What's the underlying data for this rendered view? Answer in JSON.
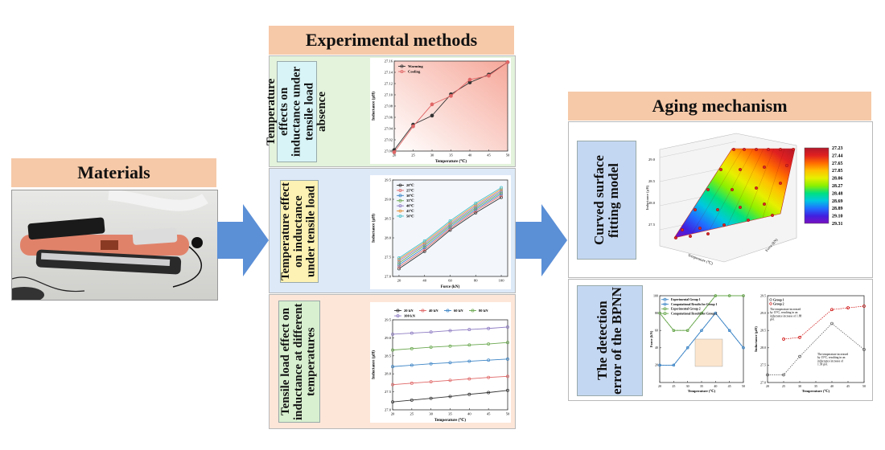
{
  "headers": {
    "materials": "Materials",
    "experimental": "Experimental methods",
    "aging": "Aging mechanism"
  },
  "panels": {
    "p1": "Temperature effects on inductance under tensile load absence",
    "p2": "Temperature effect on inductance under tensile load",
    "p3": "Tensile load effect on inductance at different temperatures",
    "a1": "Curved surface fitting model",
    "a2": "The detection error of the BPNN"
  },
  "colors": {
    "header": "#f6c9a8",
    "arrow": "#5b8fd6",
    "panel1_bg": "#e3f3dc",
    "panel1_label": "#d8f4f6",
    "panel2_bg": "#dde9f7",
    "panel2_label": "#fdf2b3",
    "panel3_bg": "#fde6d8",
    "panel3_label": "#d8f0cf",
    "aging_label": "#c4d7f2"
  },
  "chart_data": [
    {
      "id": "c1",
      "type": "line",
      "xlabel": "Temperature (℃)",
      "ylabel": "Inductance (µH)",
      "xlim": [
        20,
        50
      ],
      "ylim": [
        27.0,
        27.16
      ],
      "xticks": [
        "20",
        "25",
        "30",
        "35",
        "40",
        "45",
        "50"
      ],
      "yticks": [
        "27.00",
        "27.02",
        "27.04",
        "27.06",
        "27.08",
        "27.10",
        "27.12",
        "27.14",
        "27.16"
      ],
      "x": [
        20,
        25,
        30,
        35,
        40,
        45,
        50
      ],
      "series": [
        {
          "name": "Warming",
          "color": "#333333",
          "values": [
            27.002,
            27.047,
            27.063,
            27.101,
            27.122,
            27.136,
            27.158
          ]
        },
        {
          "name": "Cooling",
          "color": "#e06666",
          "values": [
            26.998,
            27.044,
            27.083,
            27.098,
            27.127,
            27.134,
            27.158
          ]
        }
      ]
    },
    {
      "id": "c2",
      "type": "line",
      "xlabel": "Force (kN)",
      "ylabel": "Inductance (µH)",
      "xlim": [
        15,
        105
      ],
      "ylim": [
        27.0,
        29.5
      ],
      "xticks": [
        "20",
        "40",
        "60",
        "80",
        "100"
      ],
      "yticks": [
        "27.0",
        "27.5",
        "28.0",
        "28.5",
        "29.0",
        "29.5"
      ],
      "x": [
        20,
        40,
        60,
        80,
        100
      ],
      "series": [
        {
          "name": "20℃",
          "color": "#333333",
          "values": [
            27.2,
            27.65,
            28.2,
            28.65,
            29.05
          ]
        },
        {
          "name": "25℃",
          "color": "#e06666",
          "values": [
            27.25,
            27.7,
            28.24,
            28.7,
            29.1
          ]
        },
        {
          "name": "30℃",
          "color": "#3d85c6",
          "values": [
            27.3,
            27.75,
            28.28,
            28.74,
            29.14
          ]
        },
        {
          "name": "35℃",
          "color": "#6aa84f",
          "values": [
            27.35,
            27.8,
            28.32,
            28.78,
            29.18
          ]
        },
        {
          "name": "40℃",
          "color": "#8e7cc3",
          "values": [
            27.4,
            27.84,
            28.36,
            28.82,
            29.22
          ]
        },
        {
          "name": "45℃",
          "color": "#e69138",
          "values": [
            27.44,
            27.88,
            28.4,
            28.86,
            29.26
          ]
        },
        {
          "name": "50℃",
          "color": "#45c1c9",
          "values": [
            27.48,
            27.92,
            28.44,
            28.9,
            29.3
          ]
        }
      ]
    },
    {
      "id": "c3",
      "type": "line",
      "xlabel": "Temperature (℃)",
      "ylabel": "Inductance (µH)",
      "xlim": [
        20,
        50
      ],
      "ylim": [
        27.0,
        29.5
      ],
      "xticks": [
        "20",
        "25",
        "30",
        "35",
        "40",
        "45",
        "50"
      ],
      "yticks": [
        "27.0",
        "27.5",
        "28.0",
        "28.5",
        "29.0",
        "29.5"
      ],
      "x": [
        20,
        25,
        30,
        35,
        40,
        45,
        50
      ],
      "series": [
        {
          "name": "20 kN",
          "color": "#333333",
          "values": [
            27.22,
            27.27,
            27.32,
            27.37,
            27.43,
            27.48,
            27.54
          ]
        },
        {
          "name": "40 kN",
          "color": "#e06666",
          "values": [
            27.7,
            27.74,
            27.78,
            27.82,
            27.86,
            27.9,
            27.93
          ]
        },
        {
          "name": "60 kN",
          "color": "#3d85c6",
          "values": [
            28.2,
            28.24,
            28.28,
            28.31,
            28.35,
            28.38,
            28.41
          ]
        },
        {
          "name": "80 kN",
          "color": "#6aa84f",
          "values": [
            28.66,
            28.7,
            28.74,
            28.77,
            28.8,
            28.83,
            28.87
          ]
        },
        {
          "name": "100 kN",
          "color": "#8e7cc3",
          "values": [
            29.1,
            29.13,
            29.16,
            29.2,
            29.23,
            29.26,
            29.3
          ]
        }
      ]
    },
    {
      "id": "c4",
      "type": "heatmap",
      "xlabel": "Temperature (℃)",
      "ylabel": "Inductance (µH)",
      "zlabel": "Force (kN)",
      "yticks": [
        "27.5",
        "28.0",
        "28.5",
        "29.0"
      ],
      "colorbar": [
        "27.23",
        "27.44",
        "27.65",
        "27.85",
        "28.06",
        "28.27",
        "28.48",
        "28.69",
        "28.89",
        "29.10",
        "29.31"
      ]
    },
    {
      "id": "c5",
      "type": "line",
      "xlabel": "Temperature (℃)",
      "ylabel": "Force (kN)",
      "xlim": [
        20,
        50
      ],
      "ylim": [
        0,
        100
      ],
      "xticks": [
        "20",
        "25",
        "30",
        "35",
        "40",
        "45",
        "50"
      ],
      "yticks": [
        "20",
        "40",
        "60",
        "80",
        "100"
      ],
      "x": [
        20,
        25,
        30,
        35,
        40,
        45,
        50
      ],
      "series": [
        {
          "name": "Experimental Group 1",
          "color": "#3d85c6",
          "values": [
            20,
            20,
            40,
            60,
            80,
            60,
            40
          ]
        },
        {
          "name": "Computational Results for Group 1",
          "color": "#3d85c6",
          "values": [
            20,
            20,
            40,
            60,
            80,
            60,
            40
          ]
        },
        {
          "name": "Experimental Group 2",
          "color": "#6aa84f",
          "values": [
            80,
            60,
            60,
            80,
            100,
            100,
            100
          ]
        },
        {
          "name": "Computational Results for Group 2",
          "color": "#6aa84f",
          "values": [
            80,
            60,
            60,
            80,
            100,
            100,
            100
          ]
        }
      ]
    },
    {
      "id": "c6",
      "type": "scatter",
      "xlabel": "Temperature (℃)",
      "ylabel": "Inductance (µH)",
      "xlim": [
        20,
        50
      ],
      "ylim": [
        27.0,
        29.5
      ],
      "xticks": [
        "20",
        "25",
        "30",
        "35",
        "40",
        "45",
        "50"
      ],
      "yticks": [
        "27.0",
        "27.5",
        "28.0",
        "28.5",
        "29.0",
        "29.5"
      ],
      "legend": [
        "Group 1",
        "Group 2"
      ],
      "series": [
        {
          "name": "Group 1",
          "color": "#555555",
          "x": [
            20,
            25,
            30,
            40,
            50
          ],
          "values": [
            27.22,
            27.22,
            27.75,
            28.7,
            27.95
          ]
        },
        {
          "name": "Group 2",
          "color": "#cc0000",
          "x": [
            25,
            30,
            40,
            45,
            50
          ],
          "values": [
            28.25,
            28.3,
            29.1,
            29.15,
            29.2
          ]
        }
      ],
      "annotations": [
        "The temperature increased by 15℃, resulting in an inductance increase of 1.88 µH.",
        "The temperature increased by 15℃, resulting in an inductance increase of 1.58 µH."
      ]
    }
  ]
}
